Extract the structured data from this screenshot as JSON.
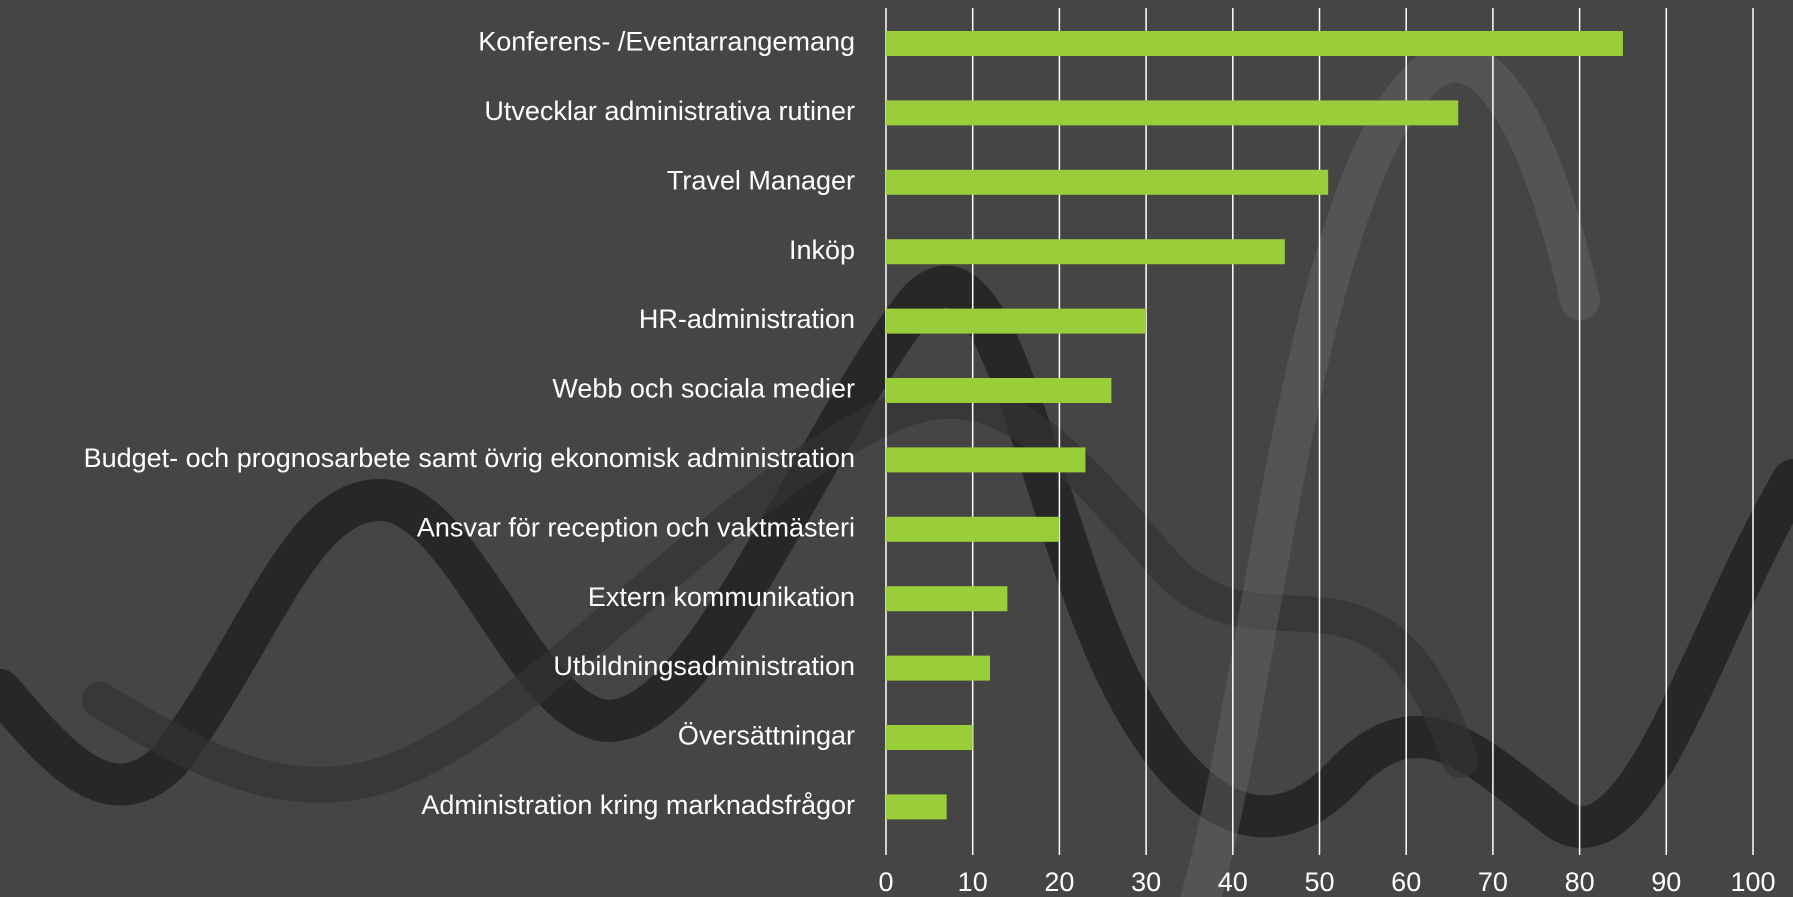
{
  "chart_data": {
    "type": "bar",
    "orientation": "horizontal",
    "categories": [
      "Konferens- /Eventarrangemang",
      "Utvecklar administrativa rutiner",
      "Travel Manager",
      "Inköp",
      "HR-administration",
      "Webb och sociala medier",
      "Budget- och prognosarbete samt övrig ekonomisk administration",
      "Ansvar för reception och vaktmästeri",
      "Extern kommunikation",
      "Utbildningsadministration",
      "Översättningar",
      "Administration kring marknadsfrågor"
    ],
    "values": [
      85,
      66,
      51,
      46,
      30,
      26,
      23,
      20,
      14,
      12,
      10,
      7
    ],
    "color": "#9acd3a",
    "xlim": [
      0,
      100
    ],
    "xticks": [
      0,
      10,
      20,
      30,
      40,
      50,
      60,
      70,
      80,
      90,
      100
    ],
    "grid": true
  }
}
